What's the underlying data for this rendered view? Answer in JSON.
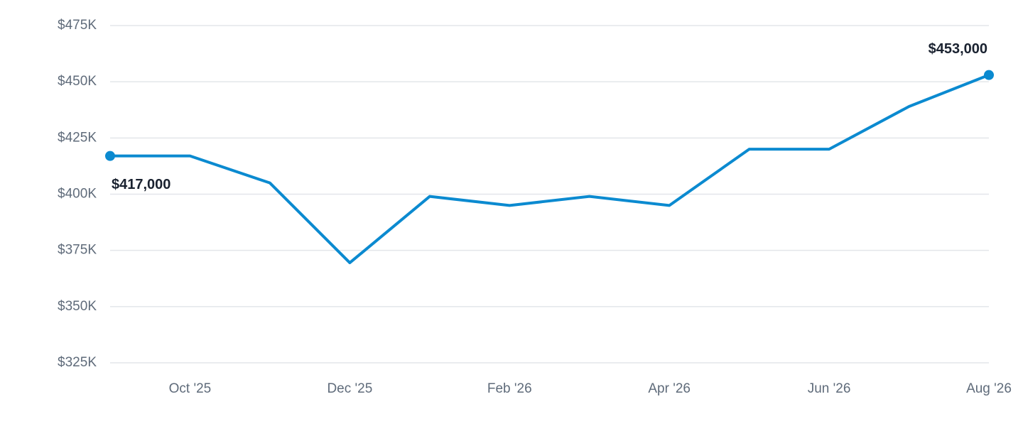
{
  "chart_data": {
    "type": "line",
    "categories": [
      null,
      "Oct '25",
      null,
      "Dec '25",
      null,
      "Feb '26",
      null,
      "Apr '26",
      null,
      "Jun '26",
      null,
      "Aug '26"
    ],
    "values": [
      417000,
      417000,
      405000,
      369500,
      399000,
      395000,
      399000,
      395000,
      420000,
      420000,
      439000,
      453000
    ],
    "value_labels": [
      "$417,000",
      null,
      null,
      null,
      null,
      null,
      null,
      null,
      null,
      null,
      null,
      "$453,000"
    ],
    "color": "#0b8ad0",
    "ylim": [
      325000,
      475000
    ],
    "yticks": [
      {
        "value": 325000,
        "label": "$325K"
      },
      {
        "value": 350000,
        "label": "$350K"
      },
      {
        "value": 375000,
        "label": "$375K"
      },
      {
        "value": 400000,
        "label": "$400K"
      },
      {
        "value": 425000,
        "label": "$425K"
      },
      {
        "value": 450000,
        "label": "$450K"
      },
      {
        "value": 475000,
        "label": "$475K"
      }
    ],
    "grid": true
  }
}
